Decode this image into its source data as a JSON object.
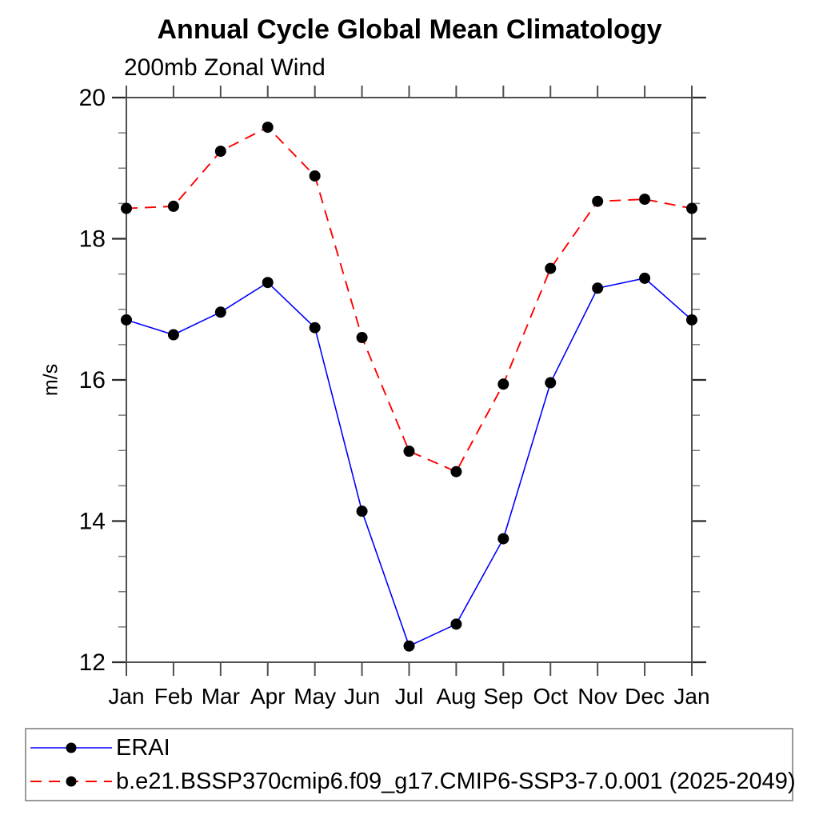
{
  "title": "Annual Cycle Global Mean Climatology",
  "subtitle": "200mb Zonal Wind",
  "ylabel": "m/s",
  "chart_data": {
    "type": "line",
    "categories": [
      "Jan",
      "Feb",
      "Mar",
      "Apr",
      "May",
      "Jun",
      "Jul",
      "Aug",
      "Sep",
      "Oct",
      "Nov",
      "Dec",
      "Jan"
    ],
    "series": [
      {
        "name": "ERAI",
        "color": "#0000ff",
        "line_style": "solid",
        "line_width": 1.6,
        "marker": "filled-circle",
        "marker_color": "#000000",
        "values": [
          16.85,
          16.64,
          16.96,
          17.38,
          16.74,
          14.14,
          12.23,
          12.54,
          13.75,
          15.96,
          17.3,
          17.44,
          16.85
        ]
      },
      {
        "name": "b.e21.BSSP370cmip6.f09_g17.CMIP6-SSP3-7.0.001 (2025-2049)",
        "color": "#ff0000",
        "line_style": "dashed",
        "line_width": 1.9,
        "marker": "filled-circle",
        "marker_color": "#000000",
        "values": [
          18.43,
          18.46,
          19.24,
          19.58,
          18.89,
          16.6,
          14.99,
          14.7,
          15.94,
          17.58,
          18.53,
          18.56,
          18.43
        ]
      }
    ],
    "ylim": [
      12,
      20
    ],
    "y_major_ticks": [
      12,
      14,
      16,
      18,
      20
    ],
    "y_major_tick_labels": [
      "12",
      "14",
      "16",
      "18",
      "20"
    ],
    "y_minor_step": 0.5,
    "grid": false,
    "legend_position": "bottom-left",
    "axis_color": "#4f4f4f",
    "tick_label_color": "#000000",
    "marker_radius": 7
  }
}
